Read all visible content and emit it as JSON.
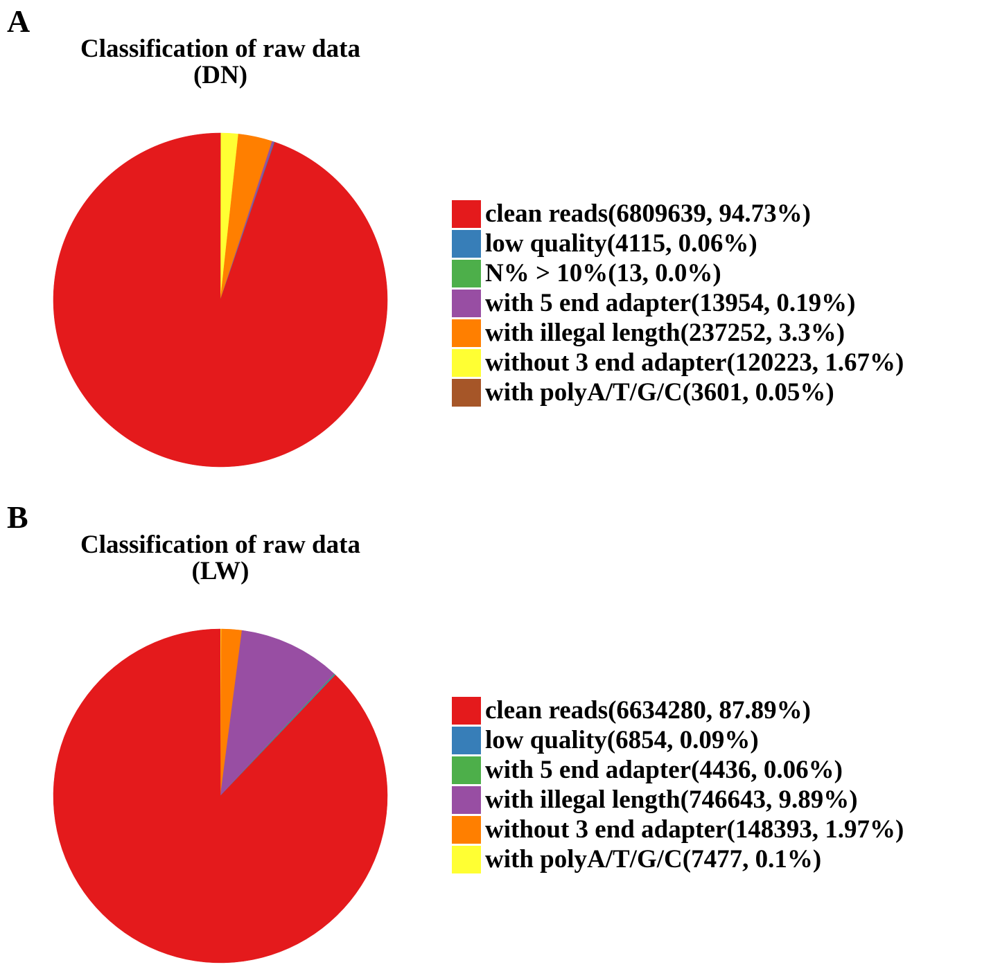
{
  "chart_data": [
    {
      "type": "pie",
      "panel_label": "A",
      "title_lines": [
        "Classification of raw data",
        "(DN)"
      ],
      "legend_placement": "right",
      "slices": [
        {
          "label": "clean reads(6809639, 94.73%)",
          "value": 6809639,
          "percent": 94.73,
          "color": "#e41a1c"
        },
        {
          "label": "low quality(4115, 0.06%)",
          "value": 4115,
          "percent": 0.06,
          "color": "#377eb8"
        },
        {
          "label": "N% > 10%(13, 0.0%)",
          "value": 13,
          "percent": 0.0,
          "color": "#4daf4a"
        },
        {
          "label": "with 5 end adapter(13954, 0.19%)",
          "value": 13954,
          "percent": 0.19,
          "color": "#984ea3"
        },
        {
          "label": "with illegal length(237252, 3.3%)",
          "value": 237252,
          "percent": 3.3,
          "color": "#ff7f00"
        },
        {
          "label": "without 3 end adapter(120223, 1.67%)",
          "value": 120223,
          "percent": 1.67,
          "color": "#ffff33"
        },
        {
          "label": "with polyA/T/G/C(3601, 0.05%)",
          "value": 3601,
          "percent": 0.05,
          "color": "#a65628"
        }
      ]
    },
    {
      "type": "pie",
      "panel_label": "B",
      "title_lines": [
        "Classification of raw data",
        "(LW)"
      ],
      "legend_placement": "right",
      "slices": [
        {
          "label": "clean reads(6634280, 87.89%)",
          "value": 6634280,
          "percent": 87.89,
          "color": "#e41a1c"
        },
        {
          "label": "low quality(6854, 0.09%)",
          "value": 6854,
          "percent": 0.09,
          "color": "#377eb8"
        },
        {
          "label": "with 5 end adapter(4436, 0.06%)",
          "value": 4436,
          "percent": 0.06,
          "color": "#4daf4a"
        },
        {
          "label": "with illegal length(746643, 9.89%)",
          "value": 746643,
          "percent": 9.89,
          "color": "#984ea3"
        },
        {
          "label": "without 3 end adapter(148393, 1.97%)",
          "value": 148393,
          "percent": 1.97,
          "color": "#ff7f00"
        },
        {
          "label": "with polyA/T/G/C(7477, 0.1%)",
          "value": 7477,
          "percent": 0.1,
          "color": "#ffff33"
        }
      ]
    }
  ]
}
